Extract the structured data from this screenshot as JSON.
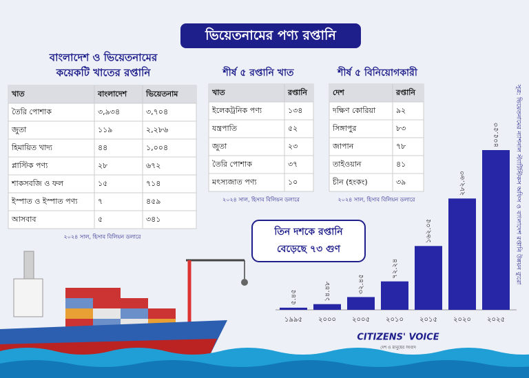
{
  "title": "ভিয়েতনামের পণ্য রপ্তানি",
  "table1": {
    "title_lines": [
      "বাংলাদেশ ও ভিয়েতনামের",
      "কয়েকটি খাতের রপ্তানি"
    ],
    "headers": [
      "খাত",
      "বাংলাদেশ",
      "ভিয়েতনাম"
    ],
    "rows": [
      [
        "তৈরি পোশাক",
        "৩,৯৩৪",
        "৩,৭০৪"
      ],
      [
        "জুতা",
        "১১৯",
        "২,২৮৬"
      ],
      [
        "হিমায়িত খাদ্য",
        "৪৪",
        "১,০০৪"
      ],
      [
        "প্লাস্টিক পণ্য",
        "২৮",
        "৬৭২"
      ],
      [
        "শাকসবজি ও ফল",
        "১৫",
        "৭১৪"
      ],
      [
        "ইস্পাত ও ইস্পাত পণ্য",
        "৭",
        "৪৫৯"
      ],
      [
        "আসবাব",
        "৫",
        "৩৪১"
      ]
    ],
    "note": "২০২৪ সাল, হিসাব বিলিয়ন ডলারে"
  },
  "table2": {
    "title": "শীর্ষ ৫ রপ্তানি খাত",
    "headers": [
      "খাত",
      "রপ্তানি"
    ],
    "rows": [
      [
        "ইলেকট্রনিক পণ্য",
        "১৩৪"
      ],
      [
        "যন্ত্রপাতি",
        "৫২"
      ],
      [
        "জুতা",
        "২৩"
      ],
      [
        "তৈরি পোশাক",
        "৩৭"
      ],
      [
        "মৎস্যজাত পণ্য",
        "১০"
      ]
    ],
    "note": "২০২৪ সাল, হিসাব বিলিয়ন ডলারে"
  },
  "table3": {
    "title": "শীর্ষ ৫ বিনিয়োগকারী",
    "headers": [
      "দেশ",
      "রপ্তানি"
    ],
    "rows": [
      [
        "দক্ষিণ কোরিয়া",
        "৯২"
      ],
      [
        "সিঙ্গাপুর",
        "৮৩"
      ],
      [
        "জাপান",
        "৭৮"
      ],
      [
        "তাইওয়ান",
        "৪১"
      ],
      [
        "চীন (হংকং)",
        "৩৯"
      ]
    ],
    "note": "২০২৪ সাল, হিসাব বিলিয়ন ডলারে"
  },
  "callout": [
    "তিন দশকে রপ্তানি",
    "বেড়েছে ৭৩ গুণ"
  ],
  "chart_data": {
    "type": "bar",
    "categories": [
      "১৯৯৫",
      "২০০০",
      "২০০৫",
      "২০১০",
      "২০১৫",
      "২০২০",
      "২০২৫"
    ],
    "values": [
      5.45,
      14.48,
      32.45,
      72.24,
      162.05,
      282.63,
      405.53
    ],
    "value_labels": [
      "৫.৪৫",
      "১৪.৪৮",
      "৩২.৪৫",
      "৭২.২৪",
      "১৬২.০৫",
      "২৮২.৬৩",
      "৪০৫.৫৩"
    ],
    "color": "#2626a6"
  },
  "source": "সূত্র: ভিয়েতনামের ন্যাশনাল স্ট্যাটিস্টিকস অফিস ও বাংলাদেশ রপ্তানি উন্নয়ন ব্যুরো",
  "logo": {
    "name": "CITIZENS' VOICE",
    "tagline": "দেশ ও মানুষের সংবাদ"
  }
}
